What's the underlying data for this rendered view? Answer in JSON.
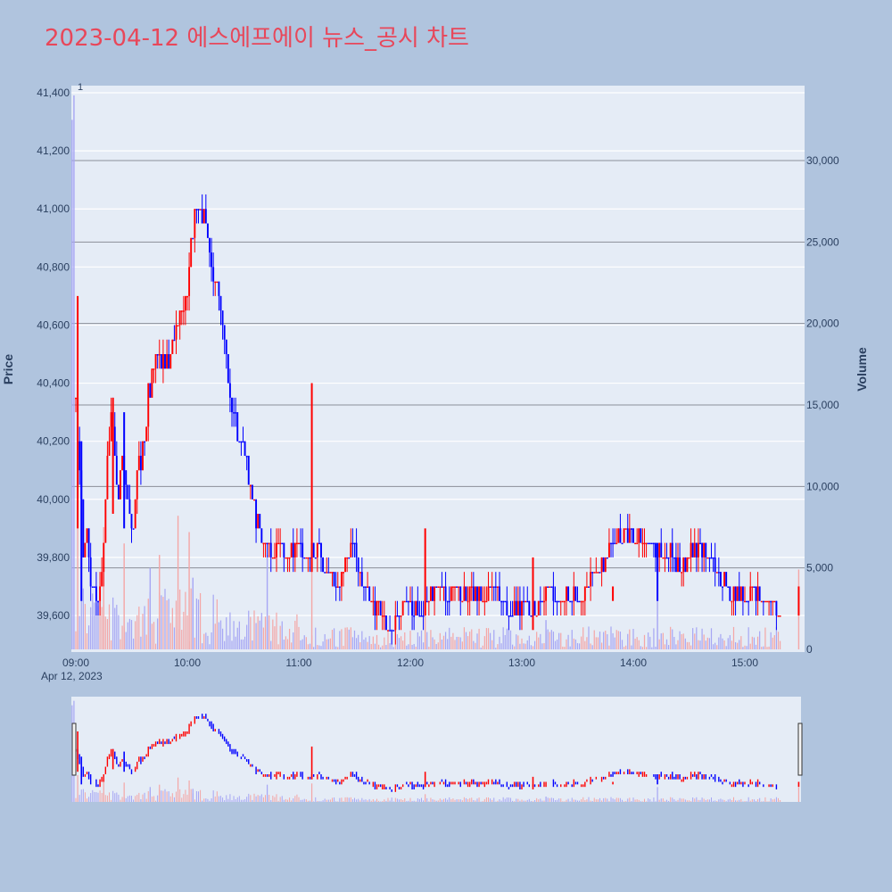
{
  "title": "2023-04-12 에스에프에이 뉴스_공시 차트",
  "colors": {
    "background": "#b0c4de",
    "plot_bg": "#e5ecf6",
    "title": "#e8475a",
    "up": "#ff0000",
    "down": "#0000ff",
    "up_volume": "#f4a6a6",
    "down_volume": "#a6a6f4"
  },
  "chart_data": {
    "type": "candlestick",
    "title": "2023-04-12 에스에프에이 뉴스_공시 차트",
    "y_left_label": "Price",
    "y_right_label": "Volume",
    "price_range": [
      39460,
      41420
    ],
    "volume_range": [
      0,
      34500
    ],
    "price_ticks": [
      {
        "value": 39600,
        "label": "39,600"
      },
      {
        "value": 39800,
        "label": "39,800"
      },
      {
        "value": 40000,
        "label": "40,000"
      },
      {
        "value": 40200,
        "label": "40,200"
      },
      {
        "value": 40400,
        "label": "40,400"
      },
      {
        "value": 40600,
        "label": "40,600"
      },
      {
        "value": 40800,
        "label": "40,800"
      },
      {
        "value": 41000,
        "label": "41,000"
      },
      {
        "value": 41200,
        "label": "41,200"
      },
      {
        "value": 41400,
        "label": "41,400"
      }
    ],
    "volume_ticks": [
      {
        "value": 0,
        "label": "0"
      },
      {
        "value": 5000,
        "label": "5,000"
      },
      {
        "value": 10000,
        "label": "10,000"
      },
      {
        "value": 15000,
        "label": "15,000"
      },
      {
        "value": 20000,
        "label": "20,000"
      },
      {
        "value": 25000,
        "label": "25,000"
      },
      {
        "value": 30000,
        "label": "30,000"
      }
    ],
    "time_range_minutes": [
      536,
      930
    ],
    "x_ticks": [
      {
        "minute": 540,
        "label": "09:00"
      },
      {
        "minute": 600,
        "label": "10:00"
      },
      {
        "minute": 660,
        "label": "11:00"
      },
      {
        "minute": 720,
        "label": "12:00"
      },
      {
        "minute": 780,
        "label": "13:00"
      },
      {
        "minute": 840,
        "label": "14:00"
      },
      {
        "minute": 900,
        "label": "15:00"
      }
    ],
    "date_label": "Apr 12, 2023",
    "annotation": "1",
    "price_path": [
      [
        540,
        40350
      ],
      [
        542,
        40100
      ],
      [
        544,
        39800
      ],
      [
        546,
        39900
      ],
      [
        548,
        39700
      ],
      [
        552,
        39650
      ],
      [
        555,
        39850
      ],
      [
        557,
        40100
      ],
      [
        559,
        40300
      ],
      [
        561,
        40150
      ],
      [
        563,
        40000
      ],
      [
        565,
        40150
      ],
      [
        567,
        40050
      ],
      [
        569,
        39950
      ],
      [
        571,
        39900
      ],
      [
        573,
        40100
      ],
      [
        575,
        40150
      ],
      [
        577,
        40200
      ],
      [
        579,
        40350
      ],
      [
        582,
        40450
      ],
      [
        585,
        40500
      ],
      [
        588,
        40450
      ],
      [
        591,
        40500
      ],
      [
        594,
        40600
      ],
      [
        597,
        40650
      ],
      [
        600,
        40700
      ],
      [
        602,
        40900
      ],
      [
        604,
        41000
      ],
      [
        607,
        40950
      ],
      [
        609,
        41000
      ],
      [
        611,
        40900
      ],
      [
        613,
        40800
      ],
      [
        616,
        40750
      ],
      [
        619,
        40600
      ],
      [
        622,
        40400
      ],
      [
        625,
        40300
      ],
      [
        628,
        40200
      ],
      [
        631,
        40150
      ],
      [
        634,
        40050
      ],
      [
        637,
        39950
      ],
      [
        640,
        39850
      ],
      [
        645,
        39800
      ],
      [
        650,
        39850
      ],
      [
        655,
        39800
      ],
      [
        660,
        39850
      ],
      [
        665,
        39800
      ],
      [
        670,
        39850
      ],
      [
        675,
        39750
      ],
      [
        680,
        39700
      ],
      [
        685,
        39800
      ],
      [
        690,
        39850
      ],
      [
        695,
        39700
      ],
      [
        700,
        39650
      ],
      [
        705,
        39600
      ],
      [
        710,
        39550
      ],
      [
        715,
        39600
      ],
      [
        720,
        39650
      ],
      [
        725,
        39600
      ],
      [
        730,
        39650
      ],
      [
        735,
        39700
      ],
      [
        740,
        39650
      ],
      [
        745,
        39700
      ],
      [
        750,
        39650
      ],
      [
        755,
        39700
      ],
      [
        760,
        39650
      ],
      [
        765,
        39700
      ],
      [
        770,
        39650
      ],
      [
        775,
        39600
      ],
      [
        780,
        39650
      ],
      [
        785,
        39600
      ],
      [
        790,
        39650
      ],
      [
        795,
        39700
      ],
      [
        800,
        39650
      ],
      [
        805,
        39700
      ],
      [
        810,
        39650
      ],
      [
        815,
        39700
      ],
      [
        820,
        39750
      ],
      [
        825,
        39800
      ],
      [
        830,
        39850
      ],
      [
        835,
        39900
      ],
      [
        840,
        39850
      ],
      [
        845,
        39850
      ],
      [
        850,
        39850
      ],
      [
        855,
        39800
      ],
      [
        860,
        39850
      ],
      [
        865,
        39750
      ],
      [
        870,
        39800
      ],
      [
        875,
        39850
      ],
      [
        880,
        39800
      ],
      [
        885,
        39750
      ],
      [
        890,
        39700
      ],
      [
        895,
        39700
      ],
      [
        900,
        39650
      ],
      [
        905,
        39700
      ],
      [
        910,
        39650
      ],
      [
        915,
        39650
      ],
      [
        919,
        39600
      ]
    ],
    "spikes": [
      {
        "minute": 541,
        "high": 40700,
        "low": 39900,
        "dir": "up"
      },
      {
        "minute": 543,
        "high": 40200,
        "low": 39650,
        "dir": "down"
      },
      {
        "minute": 560,
        "high": 40350,
        "low": 39950,
        "dir": "up"
      },
      {
        "minute": 566,
        "high": 40300,
        "low": 39900,
        "dir": "down"
      },
      {
        "minute": 667,
        "high": 40400,
        "low": 39750,
        "dir": "up"
      },
      {
        "minute": 728,
        "high": 39900,
        "low": 39600,
        "dir": "up"
      },
      {
        "minute": 786,
        "high": 39800,
        "low": 39550,
        "dir": "up"
      },
      {
        "minute": 829,
        "high": 39700,
        "low": 39650,
        "dir": "up"
      },
      {
        "minute": 853,
        "high": 39850,
        "low": 39650,
        "dir": "down"
      },
      {
        "minute": 929,
        "high": 39700,
        "low": 39600,
        "dir": "up"
      }
    ],
    "volume_spikes": [
      {
        "minute": 538,
        "volume": 32500,
        "dir": "down"
      },
      {
        "minute": 539,
        "volume": 34000,
        "dir": "down"
      },
      {
        "minute": 541,
        "volume": 9000,
        "dir": "up"
      },
      {
        "minute": 555,
        "volume": 7500,
        "dir": "up"
      },
      {
        "minute": 566,
        "volume": 6500,
        "dir": "up"
      },
      {
        "minute": 580,
        "volume": 5000,
        "dir": "down"
      },
      {
        "minute": 585,
        "volume": 5800,
        "dir": "up"
      },
      {
        "minute": 595,
        "volume": 8200,
        "dir": "up"
      },
      {
        "minute": 601,
        "volume": 7200,
        "dir": "up"
      },
      {
        "minute": 603,
        "volume": 4400,
        "dir": "down"
      },
      {
        "minute": 643,
        "volume": 5800,
        "dir": "down"
      },
      {
        "minute": 667,
        "volume": 6200,
        "dir": "up"
      },
      {
        "minute": 728,
        "volume": 2600,
        "dir": "up"
      },
      {
        "minute": 793,
        "volume": 1800,
        "dir": "down"
      },
      {
        "minute": 853,
        "volume": 5000,
        "dir": "down"
      },
      {
        "minute": 929,
        "volume": 4900,
        "dir": "up"
      }
    ],
    "navigator": {
      "present": true
    }
  }
}
